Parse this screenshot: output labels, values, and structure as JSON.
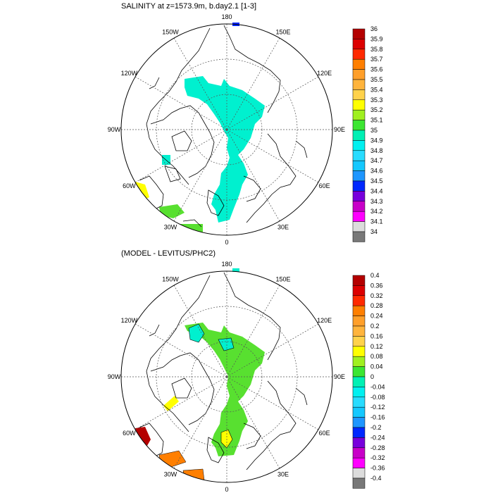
{
  "panels": [
    {
      "title": "SALINITY at z=1573.9m, b.day2.1 [1-3]",
      "lon_labels": [
        "180",
        "150E",
        "120E",
        "90E",
        "60E",
        "30E",
        "0",
        "30W",
        "60W",
        "90W",
        "120W",
        "150W"
      ],
      "colorbar": {
        "labels": [
          "36",
          "35.9",
          "35.8",
          "35.7",
          "35.6",
          "35.5",
          "35.4",
          "35.3",
          "35.2",
          "35.1",
          "35",
          "34.9",
          "34.8",
          "34.7",
          "34.6",
          "34.5",
          "34.4",
          "34.3",
          "34.2",
          "34.1",
          "34"
        ],
        "colors": [
          "#b40000",
          "#dc0000",
          "#ff2a00",
          "#ff7f00",
          "#ff9f2a",
          "#ffb43c",
          "#ffd24b",
          "#ffff00",
          "#a0f020",
          "#3ce632",
          "#00f0b4",
          "#00f0f0",
          "#28dcff",
          "#14c8ff",
          "#1e96ff",
          "#0028ff",
          "#7800dc",
          "#c800c8",
          "#ff00ff",
          "#dcdcdc",
          "#787878"
        ]
      }
    },
    {
      "title": "(MODEL - LEVITUS/PHC2)",
      "lon_labels": [
        "180",
        "150E",
        "120E",
        "90E",
        "60E",
        "30E",
        "0",
        "30W",
        "60W",
        "90W",
        "120W",
        "150W"
      ],
      "colorbar": {
        "labels": [
          "0.4",
          "0.36",
          "0.32",
          "0.28",
          "0.24",
          "0.2",
          "0.16",
          "0.12",
          "0.08",
          "0.04",
          "0",
          "-0.04",
          "-0.08",
          "-0.12",
          "-0.16",
          "-0.2",
          "-0.24",
          "-0.28",
          "-0.32",
          "-0.36",
          "-0.4"
        ],
        "colors": [
          "#b40000",
          "#dc0000",
          "#ff2a00",
          "#ff7f00",
          "#ff9f2a",
          "#ffb43c",
          "#ffd24b",
          "#ffff00",
          "#a0f020",
          "#3ce632",
          "#00f0b4",
          "#00f0f0",
          "#28dcff",
          "#14c8ff",
          "#1e96ff",
          "#0028ff",
          "#7800dc",
          "#c800c8",
          "#ff00ff",
          "#dcdcdc",
          "#787878"
        ]
      }
    }
  ]
}
